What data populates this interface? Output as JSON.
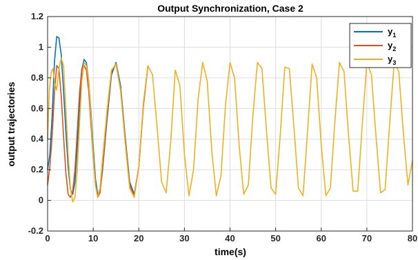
{
  "chart_data": {
    "type": "line",
    "title": "Output Synchronization, Case 2",
    "xlabel": "time(s)",
    "ylabel": "output trajectories",
    "xlim": [
      0,
      80
    ],
    "ylim": [
      -0.2,
      1.2
    ],
    "xticks": [
      0,
      10,
      20,
      30,
      40,
      50,
      60,
      70,
      80
    ],
    "yticks": [
      -0.2,
      0,
      0.2,
      0.4,
      0.6,
      0.8,
      1,
      1.2
    ],
    "grid": true,
    "legend_position": "top-right",
    "series": [
      {
        "name": "y1",
        "label_main": "y",
        "label_sub": "1",
        "color": "#0072BD",
        "x": [
          0,
          0.5,
          1,
          1.5,
          2,
          2.5,
          3,
          3.5,
          4,
          4.5,
          5,
          5.5,
          6,
          6.5,
          7,
          7.5,
          8,
          8.5,
          9,
          9.5,
          10,
          10.5,
          11,
          11.5,
          12,
          13,
          14,
          15,
          16,
          17,
          18,
          19,
          20,
          21,
          22
        ],
        "y": [
          0.2,
          0.3,
          0.55,
          0.9,
          1.07,
          1.06,
          0.95,
          0.72,
          0.45,
          0.22,
          0.07,
          0.04,
          0.12,
          0.35,
          0.62,
          0.85,
          0.92,
          0.9,
          0.78,
          0.58,
          0.35,
          0.14,
          0.04,
          0.06,
          0.18,
          0.52,
          0.82,
          0.9,
          0.75,
          0.42,
          0.12,
          0.04,
          0.22,
          0.62,
          0.88
        ]
      },
      {
        "name": "y2",
        "label_main": "y",
        "label_sub": "2",
        "color": "#D95319",
        "x": [
          0,
          0.5,
          1,
          1.5,
          2,
          2.5,
          3,
          3.5,
          4,
          4.5,
          5,
          5.5,
          6,
          6.5,
          7,
          7.5,
          8,
          8.5,
          9,
          9.5,
          10,
          10.5,
          11,
          11.5,
          12,
          13,
          14,
          15,
          16,
          17,
          18,
          19,
          20,
          21,
          22
        ],
        "y": [
          0.1,
          0.22,
          0.42,
          0.7,
          0.88,
          0.86,
          0.68,
          0.42,
          0.18,
          0.04,
          0.02,
          0.06,
          0.2,
          0.45,
          0.7,
          0.86,
          0.88,
          0.85,
          0.72,
          0.5,
          0.28,
          0.1,
          0.02,
          0.05,
          0.2,
          0.55,
          0.84,
          0.89,
          0.72,
          0.4,
          0.1,
          0.03,
          0.22,
          0.62,
          0.88
        ]
      },
      {
        "name": "y3",
        "label_main": "y",
        "label_sub": "3",
        "color": "#EDB120",
        "x": [
          0,
          0.4,
          0.8,
          1.2,
          1.6,
          2,
          2.5,
          3,
          3.5,
          4,
          4.5,
          5,
          5.5,
          6,
          6.5,
          7,
          7.5,
          8,
          8.5,
          9,
          9.5,
          10,
          10.5,
          11,
          11.5,
          12,
          13,
          14,
          15,
          16,
          17,
          18,
          19,
          20,
          21,
          22,
          23,
          24,
          25,
          26,
          27,
          28,
          29,
          30,
          31,
          32,
          33,
          34,
          35,
          36,
          37,
          38,
          39,
          40,
          41,
          42,
          43,
          44,
          45,
          46,
          47,
          48,
          49,
          50,
          51,
          52,
          53,
          54,
          55,
          56,
          57,
          58,
          59,
          60,
          61,
          62,
          63,
          64,
          65,
          66,
          67,
          68,
          69,
          70,
          71,
          72,
          73,
          74,
          75,
          76,
          77,
          78,
          79,
          80
        ],
        "y": [
          0.4,
          0.72,
          0.84,
          0.86,
          0.76,
          0.72,
          0.86,
          0.93,
          0.88,
          0.6,
          0.3,
          0.08,
          -0.01,
          0.02,
          0.2,
          0.5,
          0.78,
          0.9,
          0.88,
          0.78,
          0.55,
          0.3,
          0.1,
          0.02,
          0.08,
          0.25,
          0.58,
          0.85,
          0.89,
          0.72,
          0.38,
          0.08,
          0.02,
          0.22,
          0.64,
          0.88,
          0.82,
          0.48,
          0.12,
          0.05,
          0.38,
          0.85,
          0.75,
          0.3,
          0.03,
          0.2,
          0.66,
          0.9,
          0.78,
          0.32,
          0.03,
          0.16,
          0.62,
          0.9,
          0.8,
          0.36,
          0.04,
          0.1,
          0.55,
          0.9,
          0.86,
          0.45,
          0.08,
          0.04,
          0.42,
          0.87,
          0.86,
          0.48,
          0.08,
          0.03,
          0.45,
          0.89,
          0.8,
          0.36,
          0.03,
          0.08,
          0.52,
          0.9,
          0.84,
          0.42,
          0.06,
          0.06,
          0.5,
          0.9,
          0.82,
          0.42,
          0.05,
          0.07,
          0.5,
          0.9,
          0.84,
          0.44,
          0.1,
          0.26
        ]
      }
    ]
  }
}
